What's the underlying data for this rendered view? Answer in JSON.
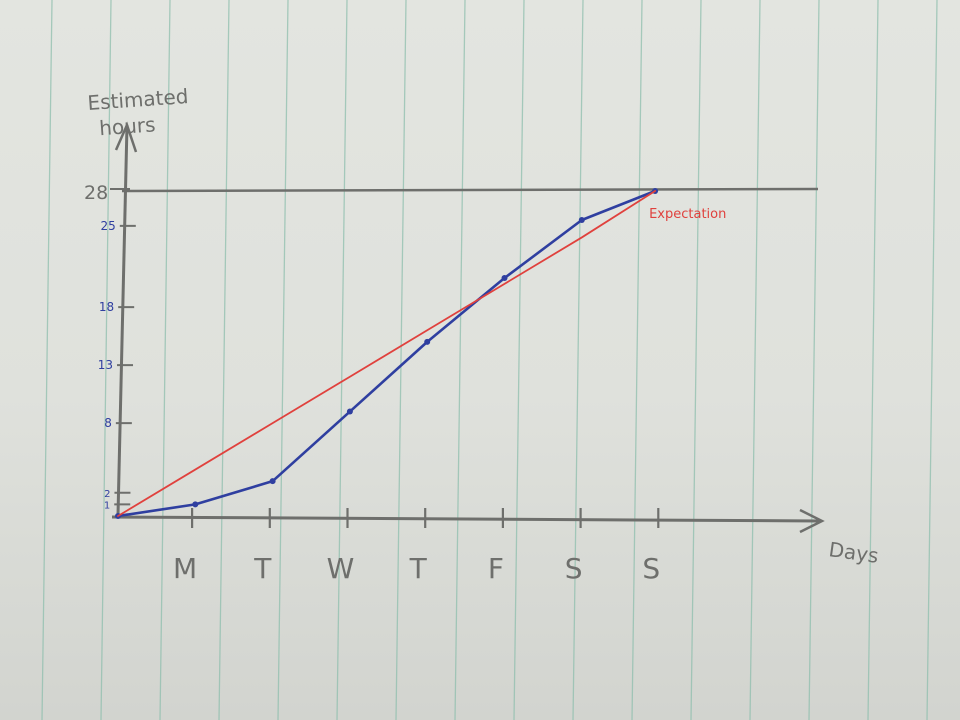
{
  "chart_data": {
    "type": "line",
    "ylabel": "Estimated hours",
    "xlabel": "Days",
    "categories": [
      "",
      "M",
      "T",
      "W",
      "T",
      "F",
      "S",
      "S"
    ],
    "yticks": [
      1,
      2,
      8,
      13,
      18,
      25,
      28
    ],
    "ylim": [
      0,
      28
    ],
    "reference_line": {
      "value": 28,
      "label": "28"
    },
    "series": [
      {
        "name": "",
        "color": "#2f3fa0",
        "values": [
          0,
          1,
          3,
          9,
          15,
          20.5,
          25.5,
          28
        ]
      },
      {
        "name": "Expectation",
        "color": "#e0413d",
        "values": [
          0,
          4,
          8,
          12,
          16,
          20,
          24,
          28
        ]
      }
    ],
    "grid": false
  },
  "colors": {
    "paper_rule": "#8fbfae",
    "pencil": "#6e6f6c",
    "ink_blue": "#2f3fa0",
    "ink_red": "#e0413d"
  }
}
